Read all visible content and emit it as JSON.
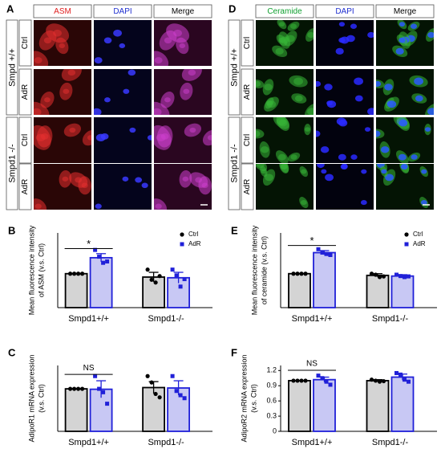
{
  "image_panels": [
    {
      "label": "A",
      "columns": [
        "ASM",
        "DAPI",
        "Merge"
      ],
      "groups": [
        {
          "name": "Smpd +/+",
          "rows": [
            "Ctrl",
            "AdR"
          ]
        },
        {
          "name": "Smpd1 -/-",
          "rows": [
            "Ctrl",
            "AdR"
          ]
        }
      ]
    },
    {
      "label": "D",
      "columns": [
        "Ceramide",
        "DAPI",
        "Merge"
      ],
      "groups": [
        {
          "name": "Smpd +/+",
          "rows": [
            "Ctrl",
            "AdR"
          ]
        },
        {
          "name": "Smpd1 -/-",
          "rows": [
            "Ctrl",
            "AdR"
          ]
        }
      ]
    }
  ],
  "chart_data": [
    {
      "type": "bar",
      "label": "B",
      "ylabel": [
        "Mean fluorescence intensity",
        "of ASM (v.s. Ctrl)"
      ],
      "categories": [
        "Smpd1+/+",
        "Smpd1-/-"
      ],
      "ylim": [
        0,
        2.2
      ],
      "legend": true,
      "annotation": "*",
      "series": [
        {
          "name": "Ctrl",
          "color": "#000000",
          "fill": "#d4d4d4",
          "values": [
            1.0,
            0.9
          ],
          "errors": [
            0,
            0.14
          ],
          "points": [
            [
              1.0,
              1.0,
              1.0,
              1.0
            ],
            [
              1.12,
              0.82,
              0.74,
              0.93
            ]
          ]
        },
        {
          "name": "AdR",
          "color": "#2020d8",
          "fill": "#c8c8f4",
          "values": [
            1.47,
            0.88
          ],
          "errors": [
            0.12,
            0.16
          ],
          "points": [
            [
              1.7,
              1.5,
              1.32,
              1.36
            ],
            [
              1.12,
              0.95,
              0.62,
              0.84
            ]
          ]
        }
      ]
    },
    {
      "type": "bar",
      "label": "C",
      "ylabel": [
        "AdipoR1 mRNA expression",
        "(v.s. Ctrl)"
      ],
      "categories": [
        "Smpd1+/+",
        "Smpd1-/-"
      ],
      "ylim": [
        0,
        1.55
      ],
      "legend": false,
      "annotation": "NS",
      "series": [
        {
          "name": "Ctrl",
          "color": "#000000",
          "fill": "#d4d4d4",
          "values": [
            1.0,
            1.03
          ],
          "errors": [
            0,
            0.14
          ],
          "points": [
            [
              1.0,
              1.0,
              1.0,
              1.0
            ],
            [
              1.3,
              1.15,
              0.88,
              0.8
            ]
          ]
        },
        {
          "name": "AdR",
          "color": "#2020d8",
          "fill": "#c8c8f4",
          "values": [
            0.99,
            1.02
          ],
          "errors": [
            0.2,
            0.17
          ],
          "points": [
            [
              1.3,
              1.0,
              0.92,
              0.65
            ],
            [
              1.3,
              0.95,
              0.85,
              0.78
            ]
          ]
        }
      ]
    },
    {
      "type": "bar",
      "label": "E",
      "ylabel": [
        "Mean fluorescence intensity",
        "of ceramide (v.s. Ctrl)"
      ],
      "categories": [
        "Smpd1+/+",
        "Smpd1-/-"
      ],
      "ylim": [
        0,
        2.2
      ],
      "legend": true,
      "annotation": "*",
      "series": [
        {
          "name": "Ctrl",
          "color": "#000000",
          "fill": "#d4d4d4",
          "values": [
            1.0,
            0.95
          ],
          "errors": [
            0,
            0.05
          ],
          "points": [
            [
              1.0,
              1.0,
              1.0,
              1.0
            ],
            [
              1.0,
              0.97,
              0.9,
              0.92
            ]
          ]
        },
        {
          "name": "AdR",
          "color": "#2020d8",
          "fill": "#c8c8f4",
          "values": [
            1.62,
            0.93
          ],
          "errors": [
            0.06,
            0.04
          ],
          "points": [
            [
              1.72,
              1.62,
              1.58,
              1.55
            ],
            [
              0.97,
              0.93,
              0.9,
              0.92
            ]
          ]
        }
      ]
    },
    {
      "type": "bar",
      "label": "F",
      "ylabel": [
        "AdipoR2 mRNA expression",
        "(v.s. Ctrl)"
      ],
      "categories": [
        "Smpd1+/+",
        "Smpd1-/-"
      ],
      "ylim": [
        0,
        1.3
      ],
      "yticks": [
        0,
        0.3,
        0.6,
        0.9,
        1.2
      ],
      "legend": false,
      "annotation": "NS",
      "series": [
        {
          "name": "Ctrl",
          "color": "#000000",
          "fill": "#d4d4d4",
          "values": [
            1.0,
            1.0
          ],
          "errors": [
            0,
            0.02
          ],
          "points": [
            [
              1.0,
              1.0,
              1.0,
              1.0
            ],
            [
              1.02,
              1.0,
              0.98,
              0.99
            ]
          ]
        },
        {
          "name": "AdR",
          "color": "#2020d8",
          "fill": "#c8c8f4",
          "values": [
            1.02,
            1.07
          ],
          "errors": [
            0.05,
            0.06
          ],
          "points": [
            [
              1.1,
              1.05,
              0.98,
              0.92
            ],
            [
              1.15,
              1.12,
              1.02,
              0.98
            ]
          ]
        }
      ]
    }
  ]
}
